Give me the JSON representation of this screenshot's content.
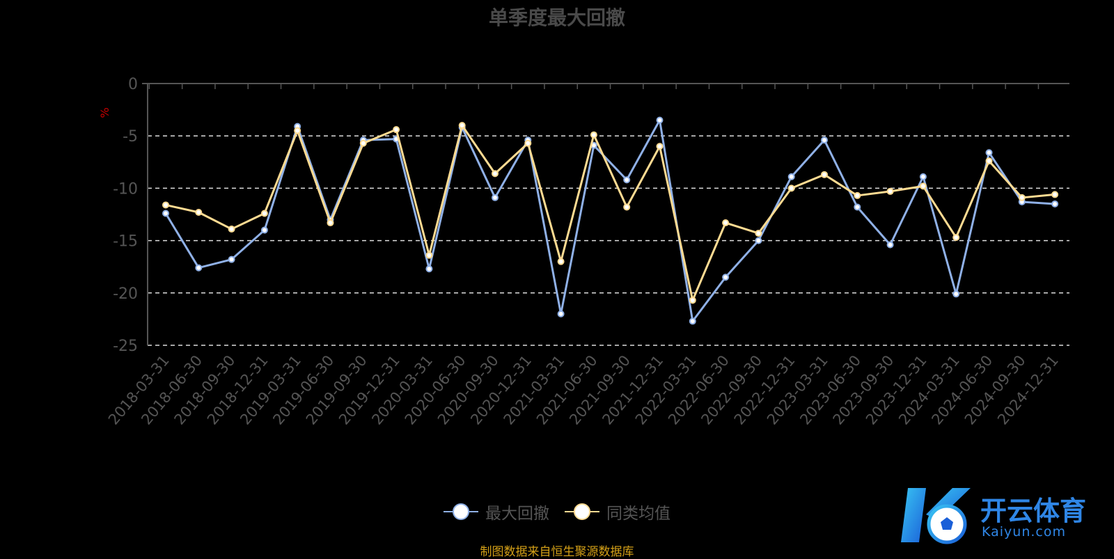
{
  "title": "单季度最大回撤",
  "source_note": "制图数据来自恒生聚源数据库",
  "logo": {
    "text": "开云体育",
    "domain": "Kaiyun.com",
    "icon": "soccer-ball-icon"
  },
  "colors": {
    "series1": "#8fb0e6",
    "series2": "#ffdb92",
    "grid": "#dddddd",
    "axis": "#555555",
    "ylabel": "#cc0000"
  },
  "chart_data": {
    "type": "line",
    "title": "单季度最大回撤",
    "ylabel": "%",
    "ylim": [
      -25,
      0
    ],
    "yticks": [
      0,
      -5,
      -10,
      -15,
      -20,
      -25
    ],
    "grid": "dashed horizontal",
    "legend_position": "bottom-center",
    "categories": [
      "2018-03-31",
      "2018-06-30",
      "2018-09-30",
      "2018-12-31",
      "2019-03-31",
      "2019-06-30",
      "2019-09-30",
      "2019-12-31",
      "2020-03-31",
      "2020-06-30",
      "2020-09-30",
      "2020-12-31",
      "2021-03-31",
      "2021-06-30",
      "2021-09-30",
      "2021-12-31",
      "2022-03-31",
      "2022-06-30",
      "2022-09-30",
      "2022-12-31",
      "2023-03-31",
      "2023-06-30",
      "2023-09-30",
      "2023-12-31",
      "2024-03-31",
      "2024-06-30",
      "2024-09-30",
      "2024-12-31"
    ],
    "series": [
      {
        "name": "最大回撤",
        "color": "#8fb0e6",
        "values": [
          -12.4,
          -17.6,
          -16.8,
          -14.0,
          -4.1,
          -13.0,
          -5.4,
          -5.3,
          -17.7,
          -4.2,
          -10.9,
          -5.4,
          -22.0,
          -5.9,
          -9.2,
          -3.5,
          -22.7,
          -18.5,
          -15.0,
          -8.9,
          -5.4,
          -11.8,
          -15.4,
          -8.9,
          -20.1,
          -6.6,
          -11.3,
          -11.5
        ]
      },
      {
        "name": "同类均值",
        "color": "#ffdb92",
        "values": [
          -11.6,
          -12.3,
          -13.9,
          -12.4,
          -4.5,
          -13.3,
          -5.7,
          -4.4,
          -16.4,
          -4.0,
          -8.6,
          -5.7,
          -17.0,
          -4.9,
          -11.8,
          -6.0,
          -20.7,
          -13.3,
          -14.3,
          -10.0,
          -8.7,
          -10.7,
          -10.3,
          -9.8,
          -14.7,
          -7.4,
          -10.9,
          -10.6
        ]
      }
    ]
  }
}
